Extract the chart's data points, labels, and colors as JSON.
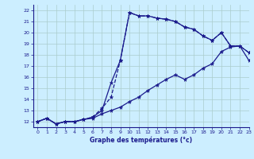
{
  "xlabel": "Graphe des températures (°c)",
  "bg_color": "#cceeff",
  "grid_color": "#aacccc",
  "line_color": "#1a1a8c",
  "xlim": [
    -0.5,
    23
  ],
  "ylim": [
    11.5,
    22.5
  ],
  "xticks": [
    0,
    1,
    2,
    3,
    4,
    5,
    6,
    7,
    8,
    9,
    10,
    11,
    12,
    13,
    14,
    15,
    16,
    17,
    18,
    19,
    20,
    21,
    22,
    23
  ],
  "yticks": [
    12,
    13,
    14,
    15,
    16,
    17,
    18,
    19,
    20,
    21,
    22
  ],
  "line1_x": [
    0,
    1,
    2,
    3,
    4,
    5,
    6,
    7,
    8,
    9,
    10,
    11,
    12,
    13,
    14,
    15,
    16,
    17,
    18,
    19,
    20,
    21,
    22,
    23
  ],
  "line1_y": [
    12.0,
    12.3,
    11.8,
    12.0,
    12.0,
    12.2,
    12.4,
    13.0,
    15.5,
    17.5,
    21.8,
    21.5,
    21.5,
    21.3,
    21.2,
    21.0,
    20.5,
    20.3,
    19.7,
    19.3,
    20.0,
    18.8,
    18.8,
    18.2
  ],
  "line2_x": [
    0,
    1,
    2,
    3,
    4,
    5,
    6,
    7,
    8,
    9,
    10,
    11,
    12,
    13,
    14,
    15,
    16,
    17,
    18,
    19,
    20,
    21,
    22,
    23
  ],
  "line2_y": [
    12.0,
    12.3,
    11.8,
    12.0,
    12.0,
    12.2,
    12.4,
    13.2,
    14.2,
    17.5,
    21.8,
    21.5,
    21.5,
    21.3,
    21.2,
    21.0,
    20.5,
    20.3,
    19.7,
    19.3,
    20.0,
    18.8,
    18.8,
    18.2
  ],
  "line1_style": "-",
  "line2_style": "--",
  "line3_x": [
    0,
    1,
    2,
    3,
    4,
    5,
    6,
    7,
    8,
    9,
    10,
    11,
    12,
    13,
    14,
    15,
    16,
    17,
    18,
    19,
    20,
    21,
    22,
    23
  ],
  "line3_y": [
    12.0,
    12.3,
    11.8,
    12.0,
    12.0,
    12.2,
    12.3,
    12.7,
    13.0,
    13.3,
    13.8,
    14.2,
    14.8,
    15.3,
    15.8,
    16.2,
    15.8,
    16.2,
    16.8,
    17.2,
    18.3,
    18.7,
    18.8,
    17.5
  ]
}
